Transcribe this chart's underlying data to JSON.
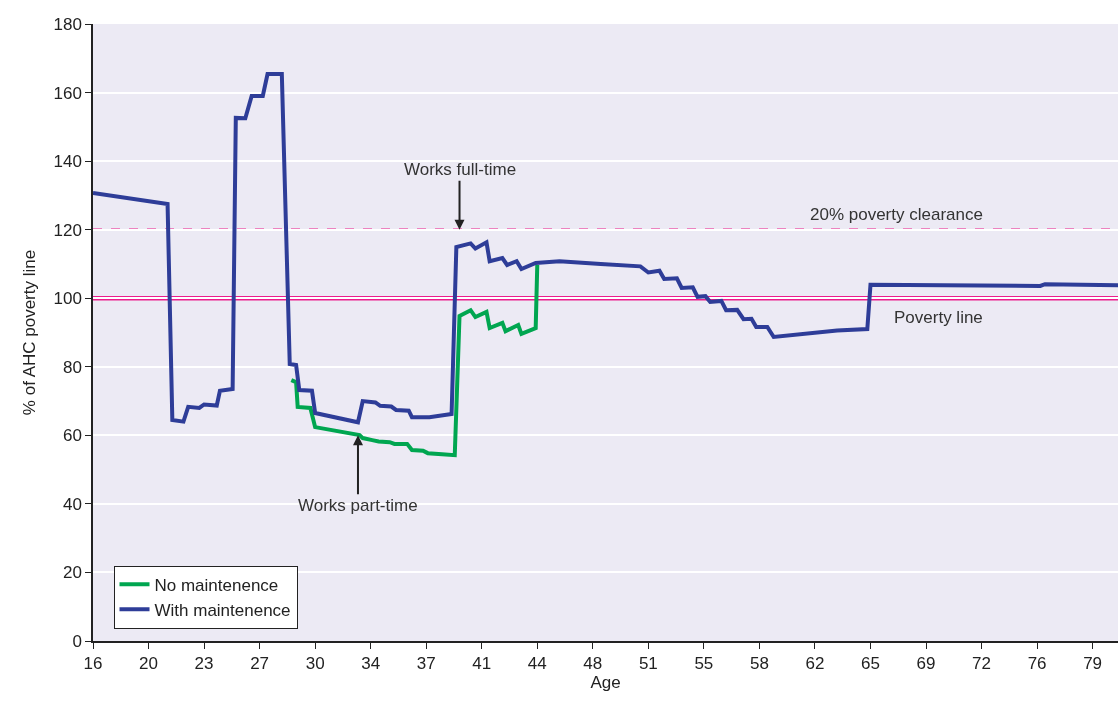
{
  "chart_data": {
    "type": "line",
    "xlabel": "Age",
    "ylabel": "% of AHC poverty line",
    "xlim": [
      16,
      80.6
    ],
    "xticks": [
      16,
      {
        "value": 19.5,
        "label": "20"
      },
      23,
      {
        "value": 26.5,
        "label": "27"
      },
      30,
      {
        "value": 33.5,
        "label": "34"
      },
      37,
      {
        "value": 40.5,
        "label": "41"
      },
      44,
      {
        "value": 47.5,
        "label": "48"
      },
      51,
      {
        "value": 54.5,
        "label": "55"
      },
      58,
      {
        "value": 61.5,
        "label": "62"
      },
      65,
      {
        "value": 68.5,
        "label": "69"
      },
      72,
      {
        "value": 75.5,
        "label": "76"
      },
      79
    ],
    "ylim": [
      0,
      180
    ],
    "yticks": [
      0,
      20,
      40,
      60,
      80,
      100,
      120,
      140,
      160,
      180
    ],
    "grid": "y",
    "legend": "bottom left",
    "marker": "none",
    "line_style": "solid",
    "series": [
      {
        "name": "No maintenence",
        "color": "#00a650",
        "x": [
          28.5,
          28.8,
          28.9,
          29.7,
          30,
          32.8,
          33,
          33.6,
          34,
          34.7,
          35,
          35.8,
          36.1,
          36.8,
          37.1,
          38,
          38.8,
          39.1,
          39.8,
          40.1,
          40.8,
          41,
          41.8,
          42,
          42.8,
          43,
          43.9,
          44
        ],
        "values": [
          76.1,
          75.5,
          68.3,
          68,
          62.4,
          60.1,
          59.2,
          58.6,
          58.2,
          58,
          57.5,
          57.5,
          55.7,
          55.5,
          54.8,
          54.5,
          54.2,
          94.8,
          96.5,
          94.5,
          96,
          91.3,
          92.8,
          90.4,
          92.2,
          89.6,
          91.3,
          109.7
        ]
      },
      {
        "name": "With maintenence",
        "color": "#2e3d98",
        "x": [
          16,
          20.7,
          21,
          21.7,
          22,
          22.7,
          23,
          23.8,
          24,
          24.8,
          25,
          25.6,
          26,
          26.7,
          27,
          27.9,
          28.4,
          28.8,
          29,
          29.8,
          30,
          32.7,
          33,
          33.8,
          34.1,
          34.8,
          35.1,
          35.9,
          36.1,
          37.2,
          38.6,
          38.9,
          39.8,
          40.1,
          40.8,
          41,
          41.8,
          42.1,
          42.7,
          43,
          43.9,
          45.4,
          48,
          50.5,
          51,
          51.7,
          52,
          52.8,
          53.1,
          53.8,
          54.1,
          54.6,
          54.9,
          55.6,
          55.9,
          56.6,
          57,
          57.5,
          57.8,
          58.5,
          58.9,
          62.9,
          64.8,
          65,
          75.7,
          76,
          80.6
        ],
        "values": [
          130.7,
          127.5,
          64.5,
          64,
          68.3,
          68,
          69,
          68.7,
          73,
          73.5,
          152.6,
          152.5,
          159,
          159,
          165.4,
          165.4,
          80.8,
          80.5,
          73.2,
          73,
          66.5,
          63.8,
          70,
          69.6,
          68.6,
          68.4,
          67.4,
          67.2,
          65.3,
          65.3,
          66.2,
          114.9,
          116,
          114.5,
          116.3,
          110.8,
          111.7,
          109.7,
          110.8,
          108.5,
          110.3,
          110.8,
          110,
          109.3,
          107.5,
          108,
          105.6,
          105.8,
          103,
          103.2,
          100.4,
          100.6,
          98.9,
          99.2,
          96.5,
          96.6,
          93.9,
          94,
          91.6,
          91.6,
          88.7,
          90.6,
          91,
          103.9,
          103.6,
          104.1,
          103.8
        ]
      }
    ],
    "ref_lines": [
      {
        "axis": "y",
        "value": 100,
        "label": "Poverty line",
        "color": "#ec1c8c",
        "line_style": "solid"
      },
      {
        "axis": "y",
        "value": 120,
        "label": "20% poverty clearance",
        "color": "#ec1c8c",
        "line_style": "dashed"
      }
    ],
    "annotations": [
      {
        "text": "Works full-time",
        "x": 39.1,
        "y": 120
      },
      {
        "text": "Works part-time",
        "x": 32.7,
        "y": 60
      }
    ]
  }
}
